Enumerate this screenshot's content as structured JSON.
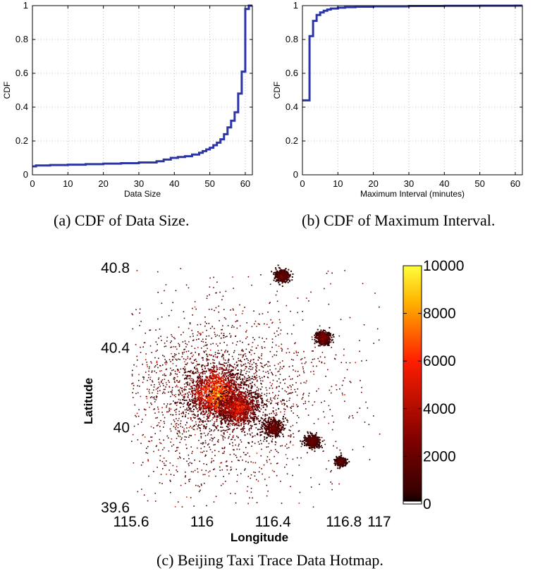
{
  "captions": {
    "a": "(a)  CDF of Data Size.",
    "b": "(b)  CDF of Maximum Interval.",
    "c": "(c)  Beijing Taxi Trace Data Hotmap."
  },
  "chart_data": [
    {
      "type": "line",
      "xlabel": "Data Size",
      "ylabel": "CDF",
      "xlim": [
        0,
        62
      ],
      "ylim": [
        0,
        1
      ],
      "xticks": [
        0,
        10,
        20,
        30,
        40,
        50,
        60
      ],
      "yticks": [
        0,
        0.2,
        0.4,
        0.6,
        0.8,
        1
      ],
      "grid": true,
      "step": true,
      "color": "#2b35a8",
      "series": [
        {
          "x": [
            0,
            1,
            5,
            10,
            15,
            20,
            25,
            30,
            35,
            37,
            39,
            41,
            43,
            45,
            47,
            48,
            49,
            50,
            51,
            52,
            53,
            54,
            55,
            56,
            57,
            58,
            59,
            60,
            61
          ],
          "y": [
            0.05,
            0.055,
            0.058,
            0.06,
            0.063,
            0.066,
            0.069,
            0.073,
            0.08,
            0.09,
            0.1,
            0.105,
            0.11,
            0.12,
            0.13,
            0.14,
            0.15,
            0.16,
            0.175,
            0.19,
            0.21,
            0.24,
            0.28,
            0.32,
            0.37,
            0.48,
            0.61,
            0.98,
            1.0
          ]
        }
      ]
    },
    {
      "type": "line",
      "xlabel": "Maximum Interval (minutes)",
      "ylabel": "CDF",
      "xlim": [
        0,
        62
      ],
      "ylim": [
        0,
        1
      ],
      "xticks": [
        0,
        10,
        20,
        30,
        40,
        50,
        60
      ],
      "yticks": [
        0,
        0.2,
        0.4,
        0.6,
        0.8,
        1
      ],
      "grid": true,
      "step": true,
      "color": "#2b35a8",
      "series": [
        {
          "x": [
            1,
            2,
            3,
            4,
            5,
            6,
            7,
            8,
            10,
            12,
            15,
            20,
            30,
            40,
            50,
            60
          ],
          "y": [
            0.44,
            0.82,
            0.91,
            0.945,
            0.96,
            0.97,
            0.977,
            0.983,
            0.988,
            0.991,
            0.994,
            0.996,
            0.998,
            0.999,
            0.9995,
            1.0
          ]
        }
      ]
    },
    {
      "type": "heatmap",
      "xlabel": "Longitude",
      "ylabel": "Latitude",
      "xlim": [
        115.6,
        117
      ],
      "ylim": [
        39.6,
        40.8
      ],
      "xticks": [
        115.6,
        116,
        116.4,
        116.8,
        117
      ],
      "yticks": [
        39.6,
        40,
        40.4,
        40.8
      ],
      "colorbar": {
        "min": 0,
        "max": 10000,
        "ticks": [
          0,
          2000,
          4000,
          6000,
          8000,
          10000
        ]
      },
      "hotspots": [
        {
          "lon": 116.08,
          "lat": 40.17,
          "intensity": 10000,
          "spread": 0.08
        },
        {
          "lon": 116.2,
          "lat": 40.1,
          "intensity": 7000,
          "spread": 0.06
        },
        {
          "lon": 116.68,
          "lat": 40.45,
          "intensity": 4000,
          "spread": 0.02
        },
        {
          "lon": 116.45,
          "lat": 40.76,
          "intensity": 3000,
          "spread": 0.02
        },
        {
          "lon": 116.62,
          "lat": 39.93,
          "intensity": 3000,
          "spread": 0.02
        },
        {
          "lon": 116.78,
          "lat": 39.83,
          "intensity": 2500,
          "spread": 0.015
        },
        {
          "lon": 116.4,
          "lat": 40.0,
          "intensity": 3000,
          "spread": 0.03
        }
      ]
    }
  ]
}
